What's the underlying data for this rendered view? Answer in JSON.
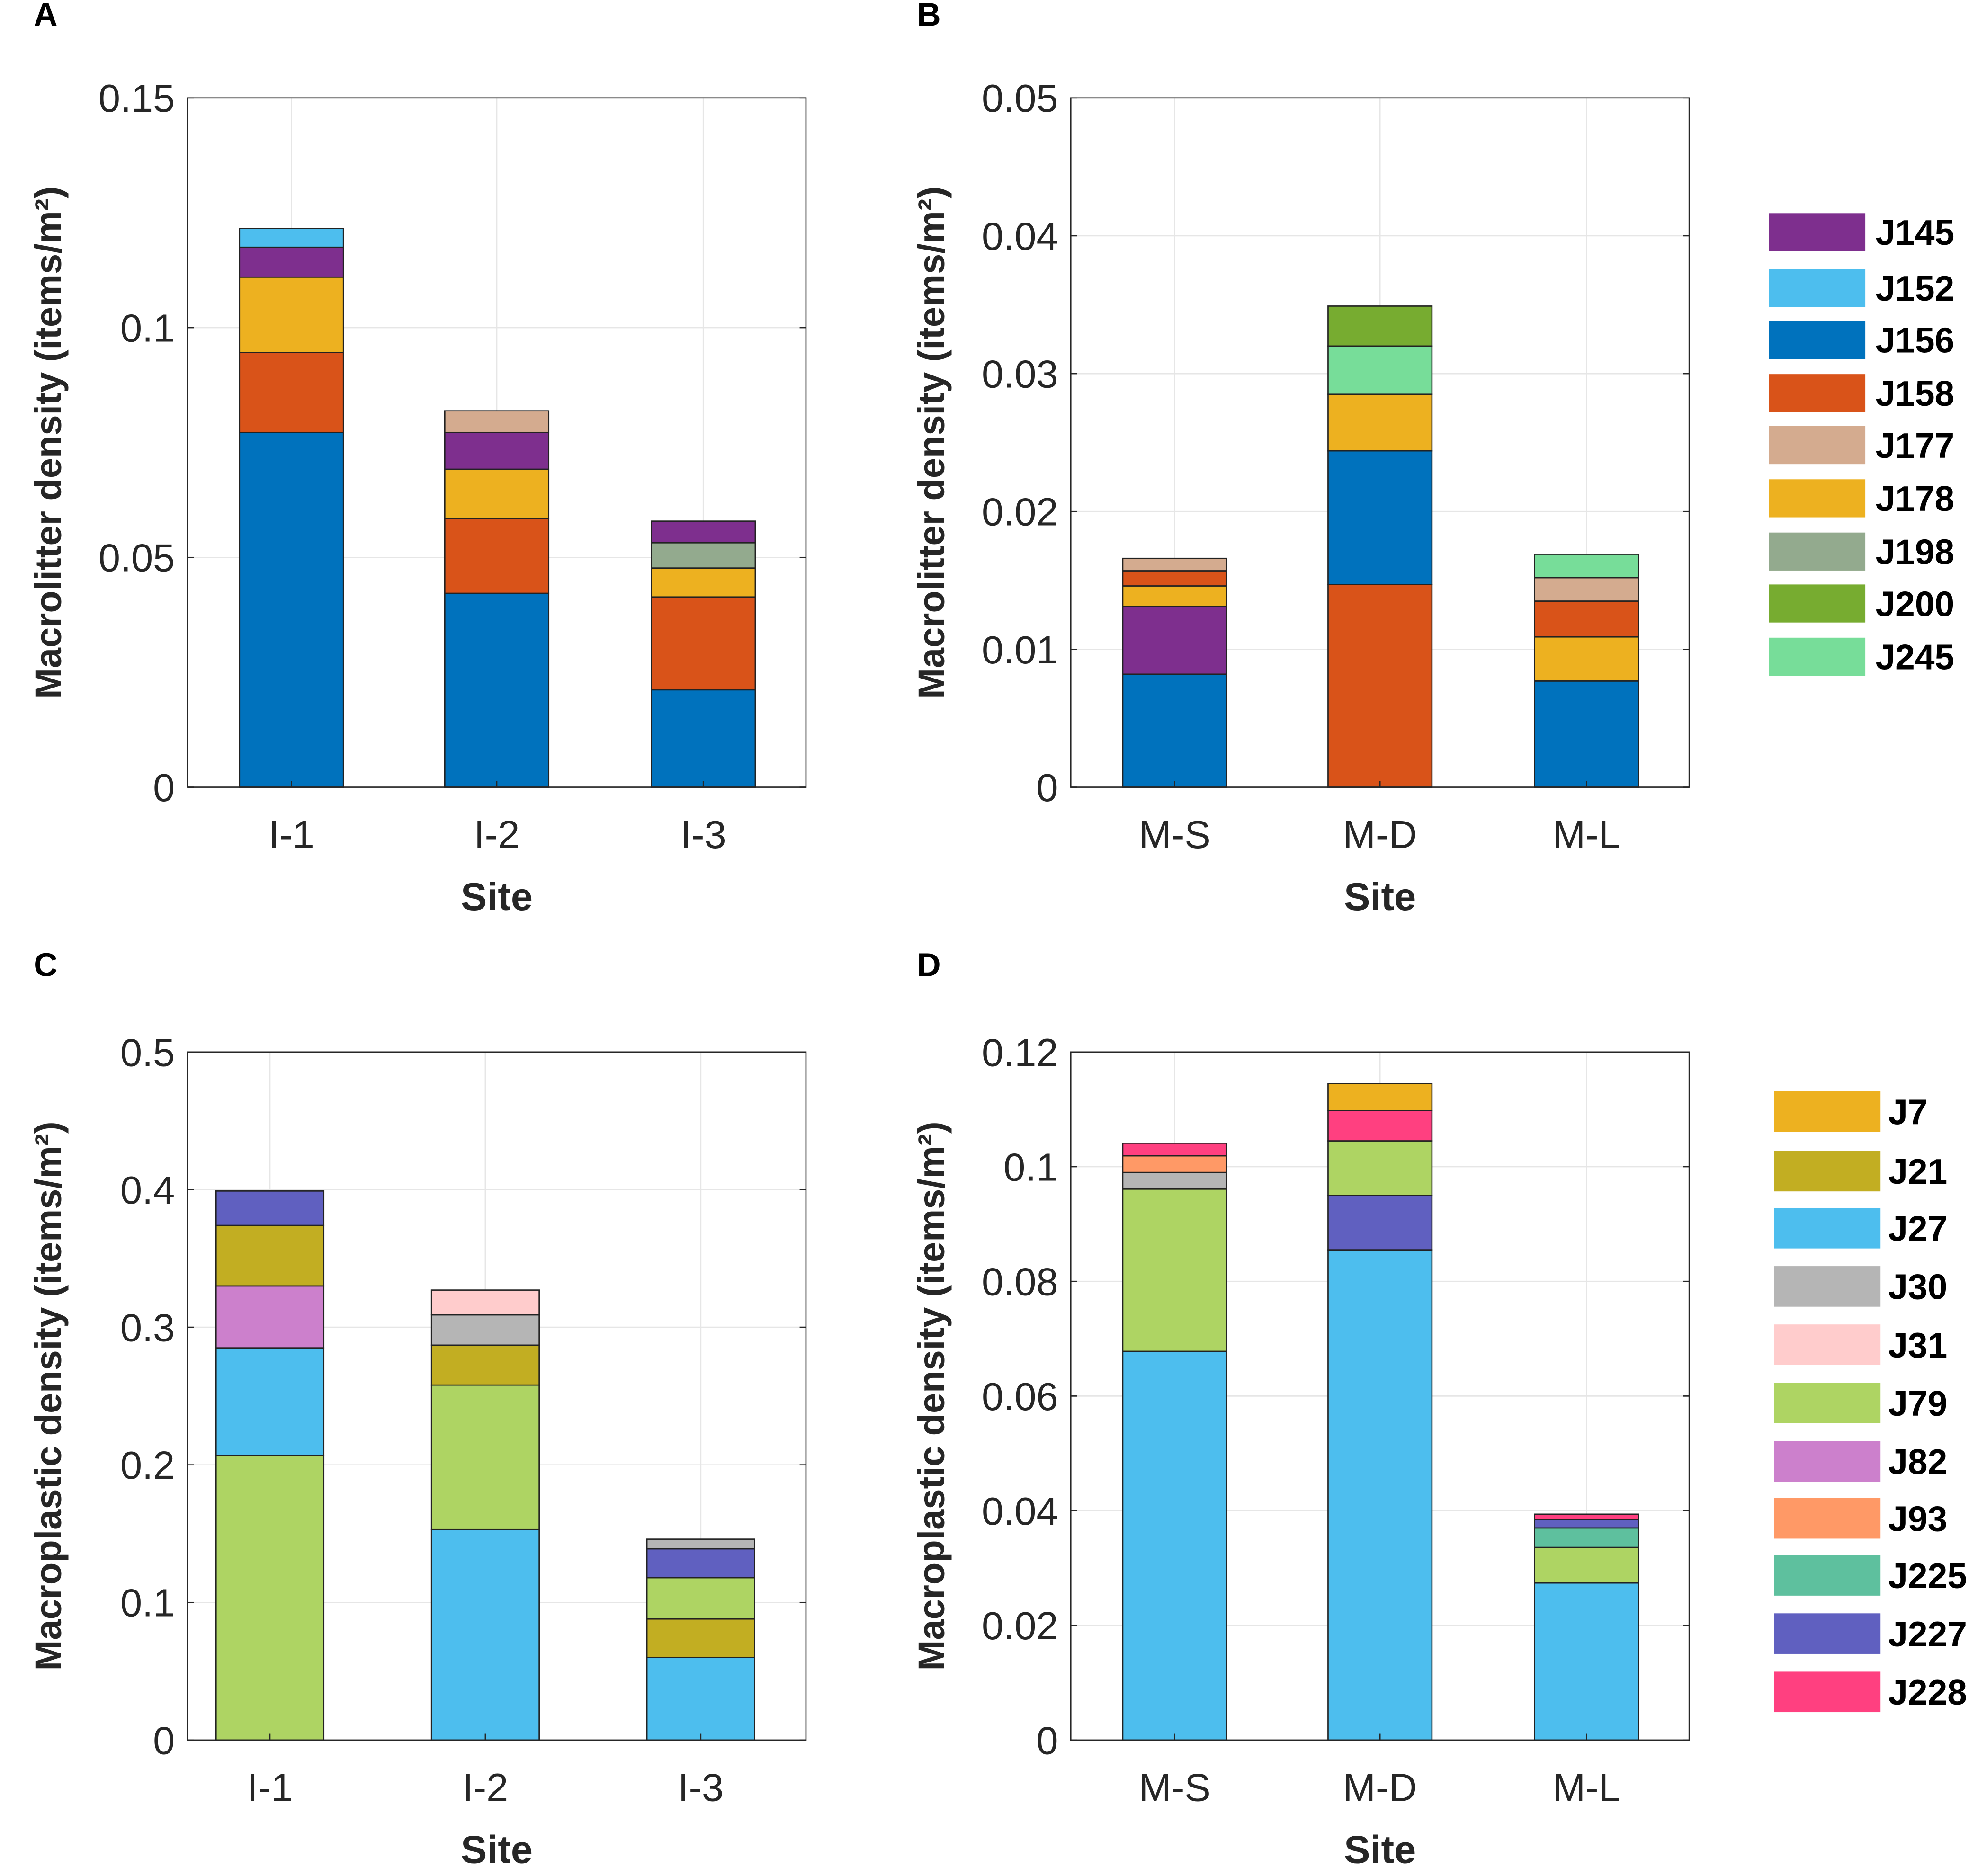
{
  "colors": {
    "J145": "#7E2F8E",
    "J152": "#4DBEEE",
    "J156": "#0072BD",
    "J158": "#D95319",
    "J177": "#D4AB8F",
    "J178": "#EDB120",
    "J198": "#93AA8E",
    "J200": "#77AC30",
    "J245": "#77DD99",
    "J7": "#EDB120",
    "J21": "#C2AE22",
    "J27": "#4DBEEE",
    "J30": "#B5B5B5",
    "J31": "#FFCCCC",
    "J79": "#AED463",
    "J82": "#CC80CC",
    "J93": "#FF9966",
    "J225": "#5EC09E",
    "J227": "#6060C0",
    "J228": "#FF4080"
  },
  "legends": [
    {
      "entries": [
        "J145",
        "J152",
        "J156",
        "J158",
        "J177",
        "J178",
        "J198",
        "J200",
        "J245"
      ]
    },
    {
      "entries": [
        "J7",
        "J21",
        "J27",
        "J30",
        "J31",
        "J79",
        "J82",
        "J93",
        "J225",
        "J227",
        "J228"
      ]
    }
  ],
  "chart_data": [
    {
      "panel": "A",
      "type": "bar",
      "stacked": true,
      "xlabel": "Site",
      "ylabel": "Macrolitter density (items/m²)",
      "ylim": [
        0,
        0.15
      ],
      "yticks": [
        "0",
        "0.05",
        "0.1",
        "0.15"
      ],
      "ytick_values": [
        0,
        0.05,
        0.1,
        0.15
      ],
      "grid": true,
      "categories": [
        "I-1",
        "I-2",
        "I-3"
      ],
      "stacks": [
        [
          [
            "J156",
            0.0772
          ],
          [
            "J158",
            0.0174
          ],
          [
            "J178",
            0.0164
          ],
          [
            "J145",
            0.0065
          ],
          [
            "J152",
            0.0041
          ]
        ],
        [
          [
            "J156",
            0.0422
          ],
          [
            "J158",
            0.0163
          ],
          [
            "J178",
            0.0107
          ],
          [
            "J145",
            0.008
          ],
          [
            "J177",
            0.0047
          ]
        ],
        [
          [
            "J156",
            0.0212
          ],
          [
            "J158",
            0.0202
          ],
          [
            "J178",
            0.0063
          ],
          [
            "J198",
            0.0055
          ],
          [
            "J145",
            0.0047
          ]
        ]
      ]
    },
    {
      "panel": "B",
      "type": "bar",
      "stacked": true,
      "xlabel": "Site",
      "ylabel": "Macrolitter density (items/m²)",
      "ylim": [
        0,
        0.05
      ],
      "yticks": [
        "0",
        "0.01",
        "0.02",
        "0.03",
        "0.04",
        "0.05"
      ],
      "ytick_values": [
        0,
        0.01,
        0.02,
        0.03,
        0.04,
        0.05
      ],
      "grid": true,
      "categories": [
        "M-S",
        "M-D",
        "M-L"
      ],
      "stacks": [
        [
          [
            "J156",
            0.0082
          ],
          [
            "J145",
            0.0049
          ],
          [
            "J178",
            0.0015
          ],
          [
            "J158",
            0.0011
          ],
          [
            "J177",
            0.0009
          ]
        ],
        [
          [
            "J158",
            0.0147
          ],
          [
            "J156",
            0.0097
          ],
          [
            "J178",
            0.0041
          ],
          [
            "J245",
            0.0035
          ],
          [
            "J200",
            0.0029
          ]
        ],
        [
          [
            "J156",
            0.0077
          ],
          [
            "J178",
            0.0032
          ],
          [
            "J158",
            0.0026
          ],
          [
            "J177",
            0.0017
          ],
          [
            "J245",
            0.0017
          ]
        ]
      ]
    },
    {
      "panel": "C",
      "type": "bar",
      "stacked": true,
      "xlabel": "Site",
      "ylabel": "Macroplastic density (items/m²)",
      "ylim": [
        0,
        0.5
      ],
      "yticks": [
        "0",
        "0.1",
        "0.2",
        "0.3",
        "0.4",
        "0.5"
      ],
      "ytick_values": [
        0,
        0.1,
        0.2,
        0.3,
        0.4,
        0.5
      ],
      "grid": true,
      "categories": [
        "I-1",
        "I-2",
        "I-3"
      ],
      "stacks": [
        [
          [
            "J79",
            0.207
          ],
          [
            "J27",
            0.078
          ],
          [
            "J82",
            0.045
          ],
          [
            "J21",
            0.044
          ],
          [
            "J227",
            0.025
          ]
        ],
        [
          [
            "J27",
            0.153
          ],
          [
            "J79",
            0.105
          ],
          [
            "J21",
            0.029
          ],
          [
            "J30",
            0.022
          ],
          [
            "J31",
            0.018
          ]
        ],
        [
          [
            "J27",
            0.06
          ],
          [
            "J21",
            0.028
          ],
          [
            "J79",
            0.03
          ],
          [
            "J227",
            0.021
          ],
          [
            "J30",
            0.007
          ]
        ]
      ]
    },
    {
      "panel": "D",
      "type": "bar",
      "stacked": true,
      "xlabel": "Site",
      "ylabel": "Macroplastic density (items/m²)",
      "ylim": [
        0,
        0.12
      ],
      "yticks": [
        "0",
        "0.02",
        "0.04",
        "0.06",
        "0.08",
        "0.1",
        "0.12"
      ],
      "ytick_values": [
        0,
        0.02,
        0.04,
        0.06,
        0.08,
        0.1,
        0.12
      ],
      "grid": true,
      "categories": [
        "M-S",
        "M-D",
        "M-L"
      ],
      "stacks": [
        [
          [
            "J27",
            0.0678
          ],
          [
            "J79",
            0.0283
          ],
          [
            "J30",
            0.0029
          ],
          [
            "J93",
            0.0029
          ],
          [
            "J228",
            0.0022
          ]
        ],
        [
          [
            "J27",
            0.0855
          ],
          [
            "J227",
            0.0095
          ],
          [
            "J79",
            0.0095
          ],
          [
            "J228",
            0.0053
          ],
          [
            "J7",
            0.0047
          ]
        ],
        [
          [
            "J27",
            0.0274
          ],
          [
            "J79",
            0.0062
          ],
          [
            "J225",
            0.0034
          ],
          [
            "J227",
            0.0015
          ],
          [
            "J228",
            0.0009
          ]
        ]
      ]
    }
  ]
}
